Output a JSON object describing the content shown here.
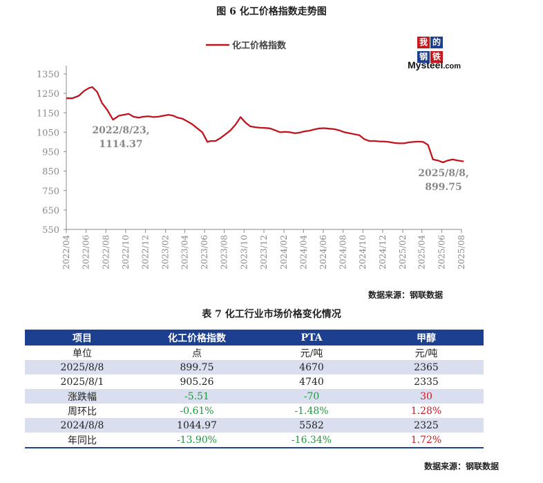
{
  "figure_title": "图 6 化工价格指数走势图",
  "chart_source": "数据来源：钢联数据",
  "logo": {
    "chars": [
      "我",
      "的",
      "钢",
      "铁"
    ],
    "word": "Mysteel",
    "suffix": ".com"
  },
  "chart_data": {
    "type": "line",
    "series_name": "化工价格指数",
    "color": "#c0141c",
    "ylim": [
      550,
      1350
    ],
    "yticks": [
      550,
      650,
      750,
      850,
      950,
      1050,
      1150,
      1250,
      1350
    ],
    "xticks": [
      "2022/04",
      "2022/06",
      "2022/08",
      "2022/10",
      "2022/12",
      "2023/02",
      "2023/04",
      "2023/06",
      "2023/08",
      "2023/10",
      "2023/12",
      "2024/02",
      "2024/04",
      "2024/06",
      "2024/08",
      "2024/10",
      "2024/12",
      "2025/02",
      "2025/04",
      "2025/06",
      "2025/08"
    ],
    "x": [
      "2022/04/01",
      "2022/04/20",
      "2022/05/10",
      "2022/05/25",
      "2022/06/10",
      "2022/06/20",
      "2022/07/05",
      "2022/07/20",
      "2022/08/05",
      "2022/08/23",
      "2022/09/10",
      "2022/09/25",
      "2022/10/10",
      "2022/10/25",
      "2022/11/10",
      "2022/11/25",
      "2022/12/10",
      "2022/12/25",
      "2023/01/10",
      "2023/01/25",
      "2023/02/10",
      "2023/02/25",
      "2023/03/10",
      "2023/03/25",
      "2023/04/10",
      "2023/04/25",
      "2023/05/10",
      "2023/05/25",
      "2023/06/10",
      "2023/06/20",
      "2023/07/05",
      "2023/07/20",
      "2023/08/05",
      "2023/08/20",
      "2023/09/05",
      "2023/09/20",
      "2023/10/05",
      "2023/10/20",
      "2023/11/05",
      "2023/11/20",
      "2023/12/05",
      "2023/12/20",
      "2024/01/05",
      "2024/01/20",
      "2024/02/05",
      "2024/02/20",
      "2024/03/05",
      "2024/03/20",
      "2024/04/05",
      "2024/04/20",
      "2024/05/05",
      "2024/05/20",
      "2024/06/05",
      "2024/06/20",
      "2024/07/05",
      "2024/07/20",
      "2024/08/05",
      "2024/08/20",
      "2024/09/05",
      "2024/09/20",
      "2024/10/05",
      "2024/10/20",
      "2024/11/05",
      "2024/11/20",
      "2024/12/05",
      "2024/12/20",
      "2025/01/05",
      "2025/01/20",
      "2025/02/05",
      "2025/02/20",
      "2025/03/05",
      "2025/03/20",
      "2025/04/05",
      "2025/04/20",
      "2025/05/05",
      "2025/05/20",
      "2025/06/05",
      "2025/06/20",
      "2025/07/05",
      "2025/07/20",
      "2025/08/08"
    ],
    "y": [
      1225,
      1225,
      1238,
      1262,
      1278,
      1282,
      1258,
      1200,
      1165,
      1114.37,
      1135,
      1140,
      1145,
      1130,
      1125,
      1130,
      1132,
      1128,
      1130,
      1135,
      1140,
      1135,
      1125,
      1120,
      1105,
      1090,
      1070,
      1050,
      1000,
      1005,
      1005,
      1020,
      1040,
      1060,
      1090,
      1128,
      1100,
      1080,
      1076,
      1073,
      1072,
      1070,
      1060,
      1050,
      1052,
      1050,
      1045,
      1048,
      1055,
      1058,
      1065,
      1070,
      1071,
      1068,
      1066,
      1060,
      1050,
      1045,
      1040,
      1035,
      1015,
      1005,
      1005,
      1003,
      1002,
      1000,
      995,
      993,
      993,
      998,
      1000,
      1002,
      1000,
      985,
      910,
      905,
      895,
      905,
      910,
      905,
      899.75
    ],
    "annotations": [
      {
        "x": "2022/08/23",
        "label1": "2022/8/23,",
        "label2": "1114.37"
      },
      {
        "x": "2025/08/08",
        "label1": "2025/8/8,",
        "label2": "899.75"
      }
    ]
  },
  "table_title": "表 7 化工行业市场价格变化情况",
  "table": {
    "headers": [
      "项目",
      "化工价格指数",
      "PTA",
      "甲醇"
    ],
    "rows": [
      {
        "cells": [
          "单位",
          "点",
          "元/吨",
          "元/吨"
        ],
        "tones": [
          "",
          "",
          "",
          ""
        ]
      },
      {
        "cells": [
          "2025/8/8",
          "899.75",
          "4670",
          "2365"
        ],
        "tones": [
          "",
          "",
          "",
          ""
        ]
      },
      {
        "cells": [
          "2025/8/1",
          "905.26",
          "4740",
          "2335"
        ],
        "tones": [
          "",
          "",
          "",
          ""
        ]
      },
      {
        "cells": [
          "涨跌幅",
          "-5.51",
          "-70",
          "30"
        ],
        "tones": [
          "",
          "neg",
          "neg",
          "pos"
        ]
      },
      {
        "cells": [
          "周环比",
          "-0.61%",
          "-1.48%",
          "1.28%"
        ],
        "tones": [
          "",
          "neg",
          "neg",
          "pos"
        ]
      },
      {
        "cells": [
          "2024/8/8",
          "1044.97",
          "5582",
          "2325"
        ],
        "tones": [
          "",
          "",
          "",
          ""
        ]
      },
      {
        "cells": [
          "年同比",
          "-13.90%",
          "-16.34%",
          "1.72%"
        ],
        "tones": [
          "",
          "neg",
          "neg",
          "pos"
        ]
      }
    ]
  },
  "table_source": "数据来源：钢联数据"
}
